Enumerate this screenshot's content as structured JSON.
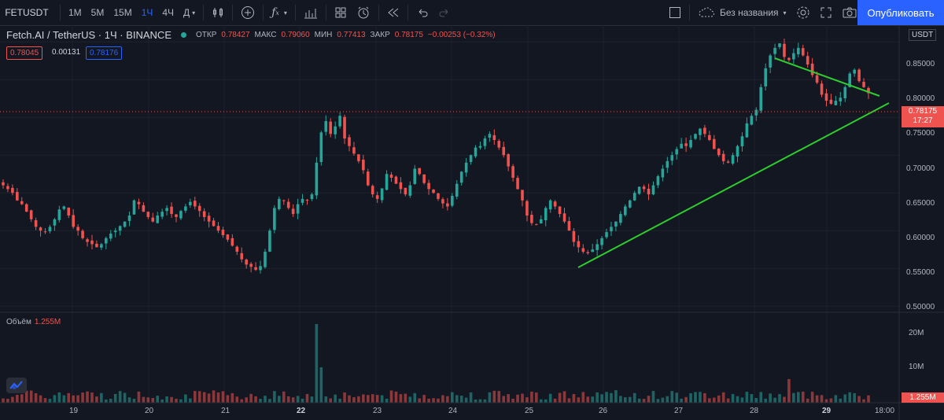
{
  "toolbar": {
    "symbol": "FETUSDT",
    "intervals": [
      "1М",
      "5М",
      "15М",
      "1Ч",
      "4Ч",
      "Д"
    ],
    "active_interval": "1Ч",
    "layout_name": "Без названия",
    "publish_label": "Опубликовать"
  },
  "legend": {
    "title": "Fetch.AI / TetherUS · 1Ч · BINANCE",
    "open_label": "ОТКР",
    "open": "0.78427",
    "high_label": "МАКС",
    "high": "0.79060",
    "low_label": "МИН",
    "low": "0.77413",
    "close_label": "ЗАКР",
    "close": "0.78175",
    "change": "−0.00253 (−0.32%)",
    "bid": "0.78045",
    "spread": "0.00131",
    "ask": "0.78176"
  },
  "currency": "USDT",
  "price_axis": [
    "0.85000",
    "0.80000",
    "0.75000",
    "0.70000",
    "0.65000",
    "0.60000",
    "0.55000",
    "0.50000"
  ],
  "current_price": {
    "price": "0.78175",
    "countdown": "17:27"
  },
  "volume": {
    "label": "Объём",
    "value": "1.255M",
    "axis": [
      "20M",
      "10M"
    ],
    "tag": "1.255M"
  },
  "time_axis": [
    "19",
    "20",
    "21",
    "22",
    "23",
    "24",
    "25",
    "26",
    "27",
    "28",
    "29",
    "18:00"
  ],
  "colors": {
    "up": "#26a69a",
    "down": "#ef5350",
    "trend": "#2ecc2e",
    "accent": "#2962ff"
  },
  "chart_data": {
    "type": "candlestick",
    "y_range": [
      0.495,
      0.87
    ],
    "closes": [
      0.66,
      0.655,
      0.65,
      0.64,
      0.635,
      0.625,
      0.615,
      0.605,
      0.6,
      0.598,
      0.605,
      0.615,
      0.628,
      0.632,
      0.62,
      0.605,
      0.6,
      0.59,
      0.585,
      0.582,
      0.578,
      0.582,
      0.59,
      0.596,
      0.6,
      0.606,
      0.612,
      0.62,
      0.64,
      0.635,
      0.625,
      0.618,
      0.612,
      0.62,
      0.625,
      0.63,
      0.622,
      0.618,
      0.626,
      0.632,
      0.638,
      0.632,
      0.626,
      0.618,
      0.612,
      0.606,
      0.6,
      0.594,
      0.588,
      0.58,
      0.572,
      0.562,
      0.555,
      0.552,
      0.548,
      0.553,
      0.572,
      0.6,
      0.63,
      0.642,
      0.64,
      0.63,
      0.622,
      0.635,
      0.642,
      0.64,
      0.648,
      0.69,
      0.73,
      0.745,
      0.728,
      0.738,
      0.752,
      0.722,
      0.712,
      0.702,
      0.692,
      0.68,
      0.66,
      0.648,
      0.642,
      0.656,
      0.675,
      0.67,
      0.662,
      0.655,
      0.648,
      0.66,
      0.682,
      0.675,
      0.663,
      0.655,
      0.65,
      0.642,
      0.636,
      0.632,
      0.646,
      0.662,
      0.678,
      0.69,
      0.7,
      0.71,
      0.712,
      0.722,
      0.728,
      0.72,
      0.71,
      0.7,
      0.685,
      0.67,
      0.655,
      0.64,
      0.62,
      0.61,
      0.608,
      0.615,
      0.63,
      0.64,
      0.632,
      0.622,
      0.612,
      0.6,
      0.585,
      0.578,
      0.572,
      0.57,
      0.575,
      0.582,
      0.59,
      0.598,
      0.605,
      0.612,
      0.622,
      0.632,
      0.64,
      0.65,
      0.658,
      0.655,
      0.648,
      0.66,
      0.672,
      0.682,
      0.692,
      0.7,
      0.708,
      0.715,
      0.712,
      0.72,
      0.728,
      0.735,
      0.728,
      0.72,
      0.708,
      0.7,
      0.692,
      0.69,
      0.7,
      0.712,
      0.725,
      0.742,
      0.752,
      0.76,
      0.79,
      0.815,
      0.832,
      0.842,
      0.848,
      0.83,
      0.826,
      0.835,
      0.842,
      0.832,
      0.82,
      0.806,
      0.796,
      0.78,
      0.772,
      0.768,
      0.772,
      0.776,
      0.79,
      0.808,
      0.813,
      0.798,
      0.79,
      0.782
    ]
  }
}
